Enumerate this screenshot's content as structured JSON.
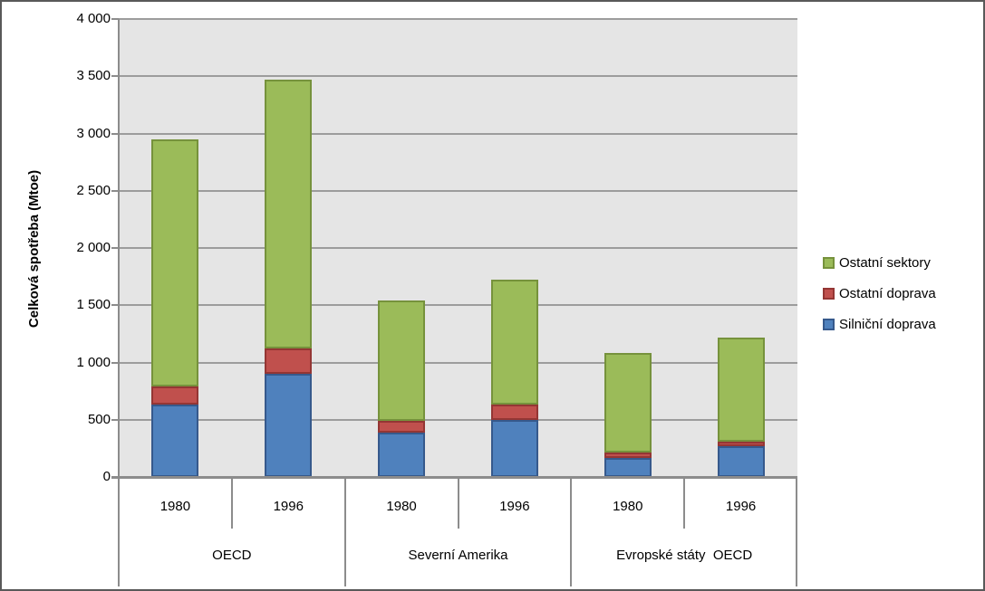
{
  "chart_data": {
    "type": "bar",
    "stacked": true,
    "title": "",
    "xlabel": "",
    "ylabel": "Celková spotřeba (Mtoe)",
    "ylim": [
      0,
      4000
    ],
    "grid": true,
    "plot_bg_color": "#E5E5E5",
    "gridline_color": "#9C9C9C",
    "ytick_values": [
      0,
      500,
      1000,
      1500,
      2000,
      2500,
      3000,
      3500,
      4000
    ],
    "ytick_labels": [
      "0",
      "500",
      "1 000",
      "1 500",
      "2 000",
      "2 500",
      "3 000",
      "3 500",
      "4 000"
    ],
    "groups": [
      {
        "label": "OECD",
        "years": [
          "1980",
          "1996"
        ]
      },
      {
        "label": "Severní Amerika",
        "years": [
          "1980",
          "1996"
        ]
      },
      {
        "label": "Evropské státy  OECD",
        "years": [
          "1980",
          "1996"
        ]
      }
    ],
    "categories": [
      "OECD 1980",
      "OECD 1996",
      "Severní Amerika 1980",
      "Severní Amerika 1996",
      "Evropské státy OECD 1980",
      "Evropské státy OECD 1996"
    ],
    "series": [
      {
        "name": "Silniční doprava",
        "color": "#4F81BD",
        "border_color": "#36598C",
        "values": [
          630,
          900,
          390,
          500,
          170,
          270
        ]
      },
      {
        "name": "Ostatní doprava",
        "color": "#C0504D",
        "border_color": "#943634",
        "values": [
          160,
          220,
          100,
          130,
          40,
          40
        ]
      },
      {
        "name": "Ostatní sektory",
        "color": "#9BBB59",
        "border_color": "#76923C",
        "values": [
          2160,
          2350,
          1050,
          1090,
          870,
          910
        ]
      }
    ],
    "totals": [
      2950,
      3470,
      1540,
      1720,
      1080,
      1220
    ],
    "legend": {
      "position": "right",
      "entries": [
        "Ostatní sektory",
        "Ostatní doprava",
        "Silniční doprava"
      ]
    }
  }
}
